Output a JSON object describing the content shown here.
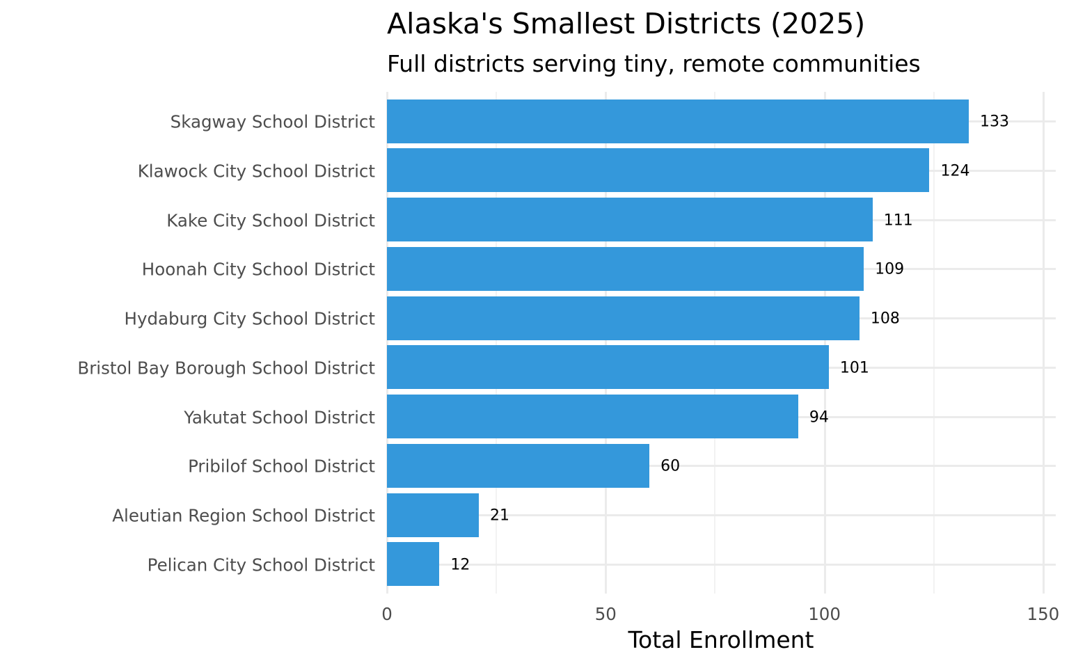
{
  "title": "Alaska's Smallest Districts (2025)",
  "subtitle": "Full districts serving tiny, remote communities",
  "bar_color": "#3498db",
  "chart_data": {
    "type": "bar",
    "orientation": "horizontal",
    "title": "Alaska's Smallest Districts (2025)",
    "subtitle": "Full districts serving tiny, remote communities",
    "xlabel": "Total Enrollment",
    "ylabel": "",
    "xlim": [
      0,
      152
    ],
    "x_ticks": [
      0,
      50,
      100,
      150
    ],
    "grid": true,
    "legend": "none",
    "categories": [
      "Skagway School District",
      "Klawock City School District",
      "Kake City School District",
      "Hoonah City School District",
      "Hydaburg City School District",
      "Bristol Bay Borough School District",
      "Yakutat School District",
      "Pribilof School District",
      "Aleutian Region School District",
      "Pelican City School District"
    ],
    "values": [
      133,
      124,
      111,
      109,
      108,
      101,
      94,
      60,
      21,
      12
    ],
    "data_labels": [
      "133",
      "124",
      "111",
      "109",
      "108",
      "101",
      "94",
      "60",
      "21",
      "12"
    ]
  }
}
